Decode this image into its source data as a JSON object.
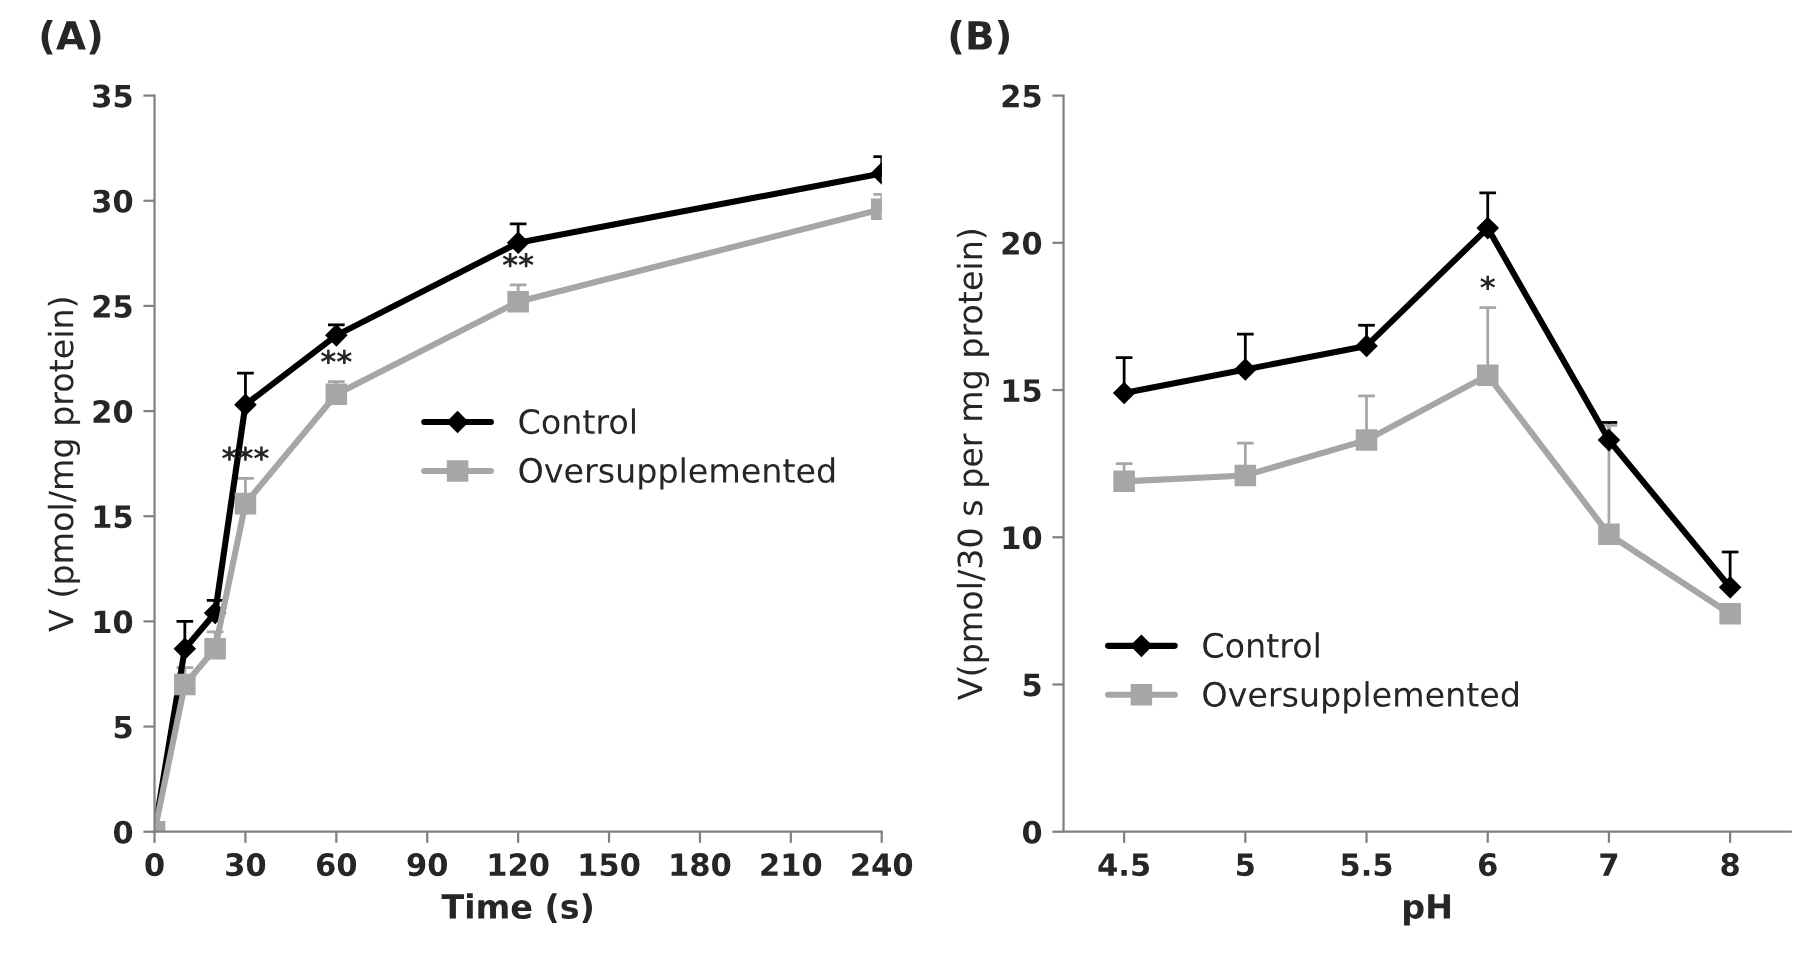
{
  "chart_data": [
    {
      "type": "line",
      "title": "(A)",
      "xlabel": "Time (s)",
      "ylabel": "V (pmol/mg protein)",
      "x": [
        0,
        10,
        20,
        30,
        60,
        120,
        240
      ],
      "xlim": [
        0,
        240
      ],
      "xticks": [
        0,
        30,
        60,
        90,
        120,
        150,
        180,
        210,
        240
      ],
      "ylim": [
        0,
        35
      ],
      "yticks": [
        0,
        5,
        10,
        15,
        20,
        25,
        30,
        35
      ],
      "grid": false,
      "legend": "right",
      "series": [
        {
          "name": "Control",
          "color": "#000000",
          "marker": "diamond",
          "values": [
            0,
            8.7,
            10.4,
            20.3,
            23.6,
            28.0,
            31.3
          ],
          "errors": [
            null,
            [
              8.7,
              10.0
            ],
            [
              10.4,
              11.0
            ],
            [
              20.3,
              21.8
            ],
            [
              23.6,
              24.1
            ],
            [
              28.0,
              28.9
            ],
            [
              31.3,
              32.1
            ]
          ]
        },
        {
          "name": "Oversupplemented",
          "color": "#a6a6a6",
          "marker": "square",
          "values": [
            0,
            7.0,
            8.7,
            15.6,
            20.8,
            25.2,
            29.6
          ],
          "errors": [
            null,
            [
              7.0,
              7.8
            ],
            [
              8.7,
              9.5
            ],
            [
              15.6,
              16.8
            ],
            [
              20.8,
              21.4
            ],
            [
              25.2,
              26.0
            ],
            [
              29.6,
              30.3
            ]
          ]
        }
      ],
      "annotations": [
        {
          "text": "***",
          "x": 30,
          "y": 16.8
        },
        {
          "text": "**",
          "x": 60,
          "y": 21.4
        },
        {
          "text": "**",
          "x": 120,
          "y": 26.0
        }
      ]
    },
    {
      "type": "line",
      "title": "(B)",
      "xlabel": "pH",
      "ylabel": "V(pmol/30 s per mg protein)",
      "categories": [
        "4.5",
        "5",
        "5.5",
        "6",
        "7",
        "8"
      ],
      "ylim": [
        0,
        25
      ],
      "yticks": [
        0,
        5,
        10,
        15,
        20,
        25
      ],
      "grid": false,
      "legend": "bottom left",
      "series": [
        {
          "name": "Control",
          "color": "#000000",
          "marker": "diamond",
          "values": [
            14.9,
            15.7,
            16.5,
            20.5,
            13.3,
            8.3
          ],
          "errors": [
            [
              14.9,
              16.1
            ],
            [
              15.7,
              16.9
            ],
            [
              16.5,
              17.2
            ],
            [
              20.5,
              21.7
            ],
            [
              13.3,
              13.9
            ],
            [
              8.3,
              9.5
            ]
          ]
        },
        {
          "name": "Oversupplemented",
          "color": "#a6a6a6",
          "marker": "square",
          "values": [
            11.9,
            12.1,
            13.3,
            15.5,
            10.1,
            7.4
          ],
          "errors": [
            [
              11.9,
              12.5
            ],
            [
              12.1,
              13.2
            ],
            [
              13.3,
              14.8
            ],
            [
              15.5,
              17.8
            ],
            [
              10.1,
              13.8
            ],
            null
          ]
        }
      ],
      "annotations": [
        {
          "text": "*",
          "x": "6",
          "y": 17.8
        }
      ]
    }
  ]
}
